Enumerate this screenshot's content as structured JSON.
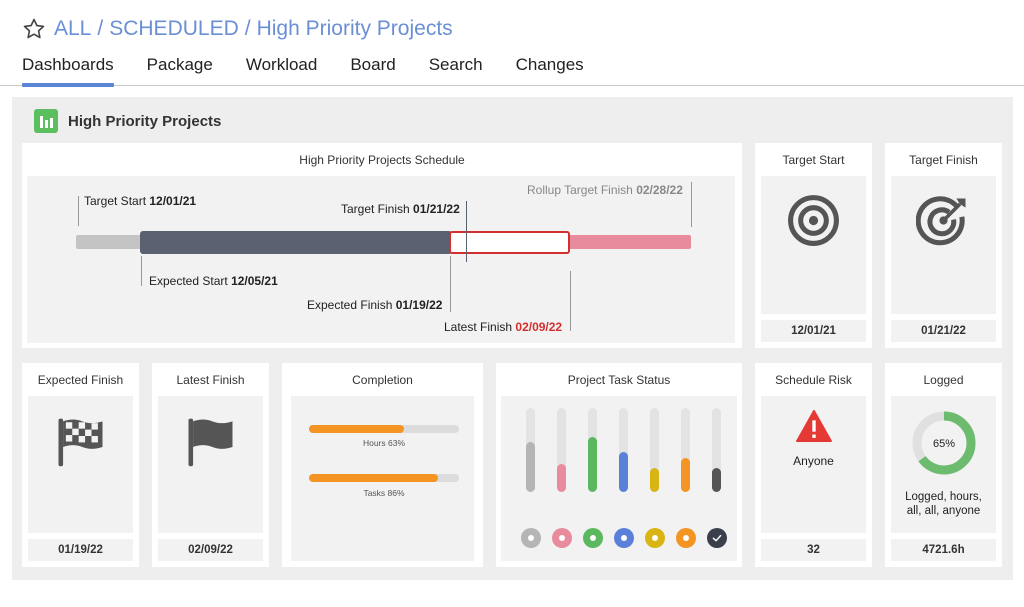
{
  "breadcrumb": {
    "items": [
      "ALL",
      "SCHEDULED",
      "High Priority Projects"
    ],
    "separator": "/"
  },
  "tabs": [
    {
      "label": "Dashboards",
      "active": true
    },
    {
      "label": "Package",
      "active": false
    },
    {
      "label": "Workload",
      "active": false
    },
    {
      "label": "Board",
      "active": false
    },
    {
      "label": "Search",
      "active": false
    },
    {
      "label": "Changes",
      "active": false
    }
  ],
  "dashboard": {
    "title": "High Priority Projects"
  },
  "schedule": {
    "title": "High Priority Projects Schedule",
    "target_start": {
      "label": "Target Start",
      "date": "12/01/21"
    },
    "target_finish": {
      "label": "Target Finish",
      "date": "01/21/22"
    },
    "rollup_target_finish": {
      "label": "Rollup Target Finish",
      "date": "02/28/22"
    },
    "expected_start": {
      "label": "Expected Start",
      "date": "12/05/21"
    },
    "expected_finish": {
      "label": "Expected Finish",
      "date": "01/19/22"
    },
    "latest_finish": {
      "label": "Latest Finish",
      "date": "02/09/22"
    }
  },
  "cards": {
    "target_start": {
      "title": "Target Start",
      "value": "12/01/21",
      "icon": "target-icon"
    },
    "target_finish": {
      "title": "Target Finish",
      "value": "01/21/22",
      "icon": "target-arrow-icon"
    },
    "expected_finish": {
      "title": "Expected Finish",
      "value": "01/19/22",
      "icon": "checkered-flag-icon"
    },
    "latest_finish": {
      "title": "Latest Finish",
      "value": "02/09/22",
      "icon": "flag-icon"
    },
    "completion": {
      "title": "Completion",
      "bars": [
        {
          "label": "Hours 63%",
          "percent": 63
        },
        {
          "label": "Tasks 86%",
          "percent": 86
        }
      ]
    },
    "task_status": {
      "title": "Project Task Status",
      "columns": [
        {
          "level": 0.6,
          "color": "#b5b5b5"
        },
        {
          "level": 0.33,
          "color": "#e88c9d"
        },
        {
          "level": 0.65,
          "color": "#5bb85f"
        },
        {
          "level": 0.48,
          "color": "#5b80d9"
        },
        {
          "level": 0.28,
          "color": "#d9b415"
        },
        {
          "level": 0.4,
          "color": "#f39423"
        },
        {
          "level": 0.28,
          "color": "#555555"
        }
      ],
      "dots": [
        "#b5b5b5",
        "#e88c9d",
        "#5bb85f",
        "#5b80d9",
        "#d9b415",
        "#f39423",
        "#3a3f4b"
      ]
    },
    "schedule_risk": {
      "title": "Schedule Risk",
      "text": "Anyone",
      "value": "32",
      "icon": "warning-icon"
    },
    "logged": {
      "title": "Logged",
      "percent_label": "65%",
      "percent": 65,
      "caption": "Logged, hours, all, all, anyone",
      "value": "4721.6h"
    }
  },
  "colors": {
    "accent": "#5b86d6",
    "bar_dark": "#5a6272",
    "bar_pink": "#e88c9d",
    "latest_red": "#d32f2f",
    "risk_red": "#e53935",
    "logged_green": "#6dbb6f"
  }
}
